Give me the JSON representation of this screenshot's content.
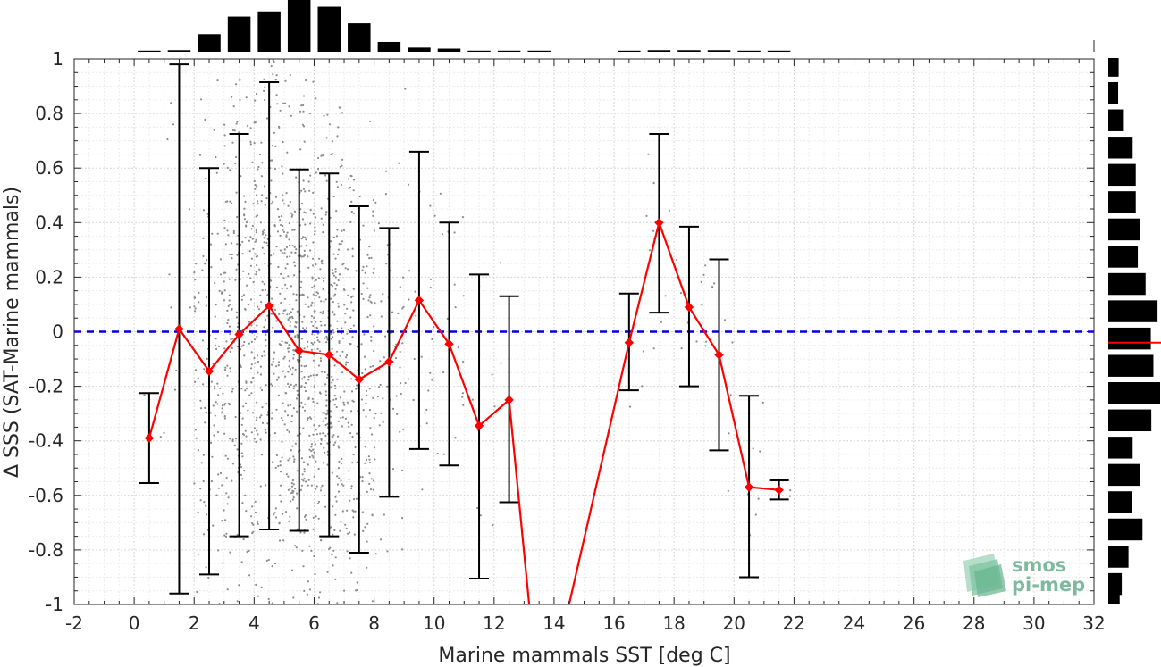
{
  "chart_data": {
    "type": "scatter",
    "xlabel": "Marine mammals SST [deg C]",
    "ylabel": "Δ SSS (SAT-Marine mammals)",
    "xlim": [
      -2,
      32
    ],
    "ylim": [
      -1,
      1
    ],
    "x_ticks": [
      "-2",
      "0",
      "2",
      "4",
      "6",
      "8",
      "10",
      "12",
      "14",
      "16",
      "18",
      "20",
      "22",
      "24",
      "26",
      "28",
      "30",
      "32"
    ],
    "y_ticks": [
      "-1",
      "-0.8",
      "-0.6",
      "-0.4",
      "-0.2",
      "0",
      "0.2",
      "0.4",
      "0.6",
      "0.8",
      "1"
    ],
    "grid": true,
    "reference_line": {
      "y": 0,
      "style": "dashed",
      "color": "#0000dd"
    },
    "binned_mean": {
      "x": [
        0.5,
        1.5,
        2.5,
        3.5,
        4.5,
        5.5,
        6.5,
        7.5,
        8.5,
        9.5,
        10.5,
        11.5,
        12.5,
        13.5,
        14.5,
        15.5,
        16.5,
        17.5,
        18.5,
        19.5,
        20.5,
        21.5
      ],
      "y": [
        -0.39,
        0.01,
        -0.145,
        -0.01,
        0.095,
        -0.07,
        -0.085,
        -0.175,
        -0.11,
        0.115,
        -0.045,
        -0.345,
        -0.25,
        null,
        null,
        null,
        -0.04,
        0.4,
        0.09,
        -0.085,
        -0.57,
        -0.58
      ],
      "lower": [
        -0.555,
        -0.96,
        -0.89,
        -0.75,
        -0.725,
        -0.73,
        -0.75,
        -0.81,
        -0.605,
        -0.43,
        -0.49,
        -0.905,
        -0.625,
        null,
        null,
        null,
        -0.215,
        0.07,
        -0.2,
        -0.435,
        -0.9,
        -0.615
      ],
      "upper": [
        -0.225,
        0.98,
        0.6,
        0.725,
        0.915,
        0.595,
        0.58,
        0.46,
        0.38,
        0.66,
        0.4,
        0.21,
        0.13,
        null,
        null,
        null,
        0.14,
        0.725,
        0.385,
        0.265,
        -0.235,
        -0.545
      ],
      "color": "#ff0000"
    },
    "off_scale_segments": [
      {
        "x": [
          12.5,
          13.17
        ],
        "y": [
          -0.25,
          -1
        ]
      },
      {
        "x": [
          14.5,
          16.5
        ],
        "y": [
          -1,
          -0.04
        ]
      }
    ],
    "scatter_color": "#8c8c8c",
    "top_histogram": {
      "bin_centers": [
        0.5,
        1.5,
        2.5,
        3.5,
        4.5,
        5.5,
        6.5,
        7.5,
        8.5,
        9.5,
        10.5,
        11.5,
        12.5,
        13.5,
        16.5,
        17.5,
        18.5,
        19.5,
        20.5,
        21.5
      ],
      "counts": [
        0.01,
        0.03,
        0.34,
        0.68,
        0.78,
        1.0,
        0.87,
        0.55,
        0.19,
        0.08,
        0.06,
        0.02,
        0.01,
        0.01,
        0.01,
        0.03,
        0.03,
        0.03,
        0.02,
        0.01
      ]
    },
    "right_histogram": {
      "bin_centers": [
        0.975,
        0.875,
        0.775,
        0.675,
        0.575,
        0.475,
        0.375,
        0.275,
        0.175,
        0.075,
        -0.025,
        -0.125,
        -0.225,
        -0.325,
        -0.425,
        -0.525,
        -0.625,
        -0.725,
        -0.825,
        -0.925,
        -0.99
      ],
      "counts": [
        0.2,
        0.19,
        0.3,
        0.47,
        0.53,
        0.53,
        0.62,
        0.57,
        0.72,
        0.95,
        0.82,
        0.87,
        1.0,
        0.83,
        0.47,
        0.62,
        0.45,
        0.66,
        0.39,
        0.26,
        0.22
      ],
      "median_line": {
        "y": -0.04,
        "color": "#ff0000"
      }
    }
  },
  "logo": {
    "line1": "smos",
    "line2": "pi-mep"
  }
}
